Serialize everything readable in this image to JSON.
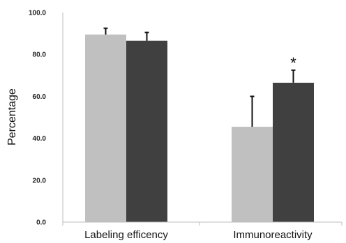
{
  "chart_data": {
    "type": "bar",
    "title": "",
    "xlabel": "",
    "ylabel": "Percentage",
    "ylim": [
      0,
      100
    ],
    "y_ticks": [
      "0.0",
      "20.0",
      "40.0",
      "60.0",
      "80.0",
      "100.0"
    ],
    "categories": [
      "Labeling efficency",
      "Immunoreactivity"
    ],
    "series": [
      {
        "color": "#c0c0c0",
        "values": [
          89.5,
          45.5
        ],
        "errors": [
          3.0,
          14.5
        ]
      },
      {
        "color": "#404040",
        "values": [
          86.5,
          66.5
        ],
        "errors": [
          4.0,
          6.0
        ]
      }
    ],
    "annotations": [
      {
        "category": "Immunoreactivity",
        "series": 1,
        "text": "*"
      }
    ],
    "grid": false,
    "legend": "none"
  }
}
